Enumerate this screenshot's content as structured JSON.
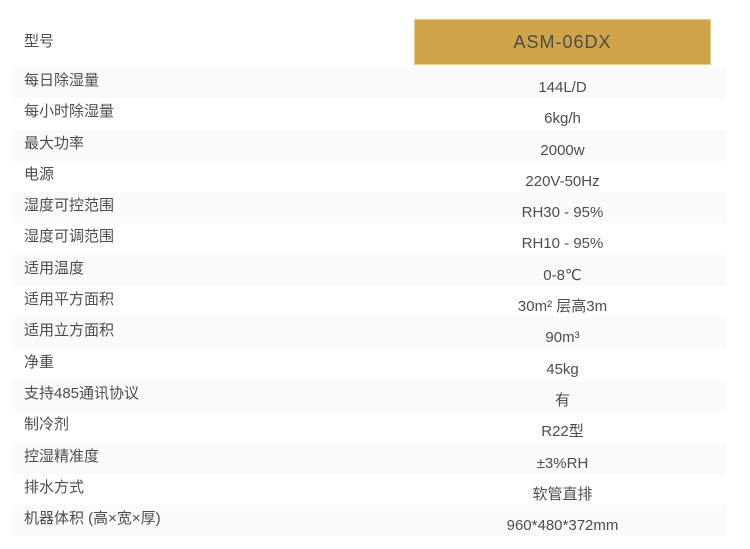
{
  "colors": {
    "badge_gold": "#CFA34A",
    "badge_border": "#E4CC8D",
    "stripe": "#FAFAFA",
    "text": "#4D4D4D"
  },
  "model_row": {
    "label": "型号",
    "value": "ASM-06DX"
  },
  "rows": [
    {
      "label": "每日除湿量",
      "value": "144L/D"
    },
    {
      "label": "每小时除湿量",
      "value": "6kg/h"
    },
    {
      "label": "最大功率",
      "value": "2000w"
    },
    {
      "label": "电源",
      "value": "220V-50Hz"
    },
    {
      "label": "湿度可控范围",
      "value": "RH30 - 95%"
    },
    {
      "label": "湿度可调范围",
      "value": "RH10 - 95%"
    },
    {
      "label": "适用温度",
      "value": "0-8℃"
    },
    {
      "label": "适用平方面积",
      "value": "30m² 层高3m"
    },
    {
      "label": "适用立方面积",
      "value": "90m³"
    },
    {
      "label": "净重",
      "value": "45kg"
    },
    {
      "label": "支持485通讯协议",
      "value": "有"
    },
    {
      "label": "制冷剂",
      "value": "R22型"
    },
    {
      "label": "控湿精准度",
      "value": "±3%RH"
    },
    {
      "label": "排水方式",
      "value": "软管直排"
    },
    {
      "label": "机器体积 (高×宽×厚)",
      "value": "960*480*372mm"
    }
  ]
}
